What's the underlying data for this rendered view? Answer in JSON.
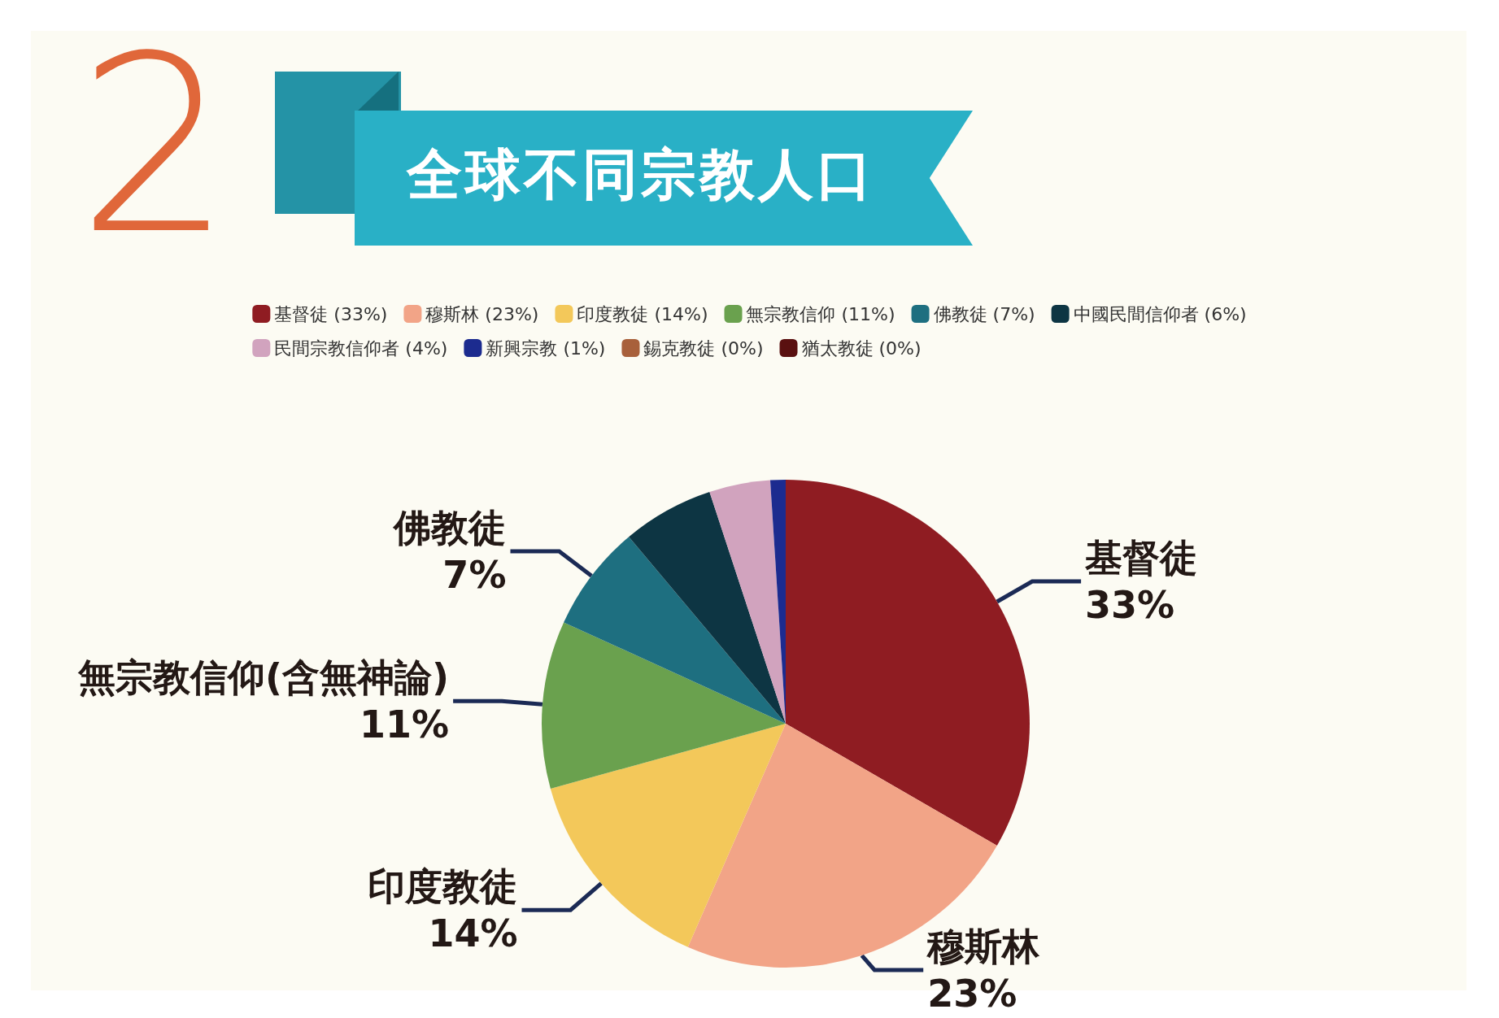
{
  "chart_data": {
    "type": "pie",
    "title": "全球不同宗教人口",
    "annotations": [
      "2"
    ],
    "categories": [
      "基督徒 (33%)",
      "穆斯林 (23%)",
      "印度教徒 (14%)",
      "無宗教信仰 (11%)",
      "佛教徒 (7%)",
      "中國民間信仰者 (6%)",
      "民間宗教信仰者 (4%)",
      "新興宗教 (1%)",
      "錫克教徒 (0%)",
      "猶太教徒 (0%)"
    ],
    "values": [
      33,
      23,
      14,
      11,
      7,
      6,
      4,
      1,
      0,
      0
    ],
    "colors": [
      "#8f1c22",
      "#f2a487",
      "#f3c85a",
      "#6aa14e",
      "#1e6f80",
      "#0d3543",
      "#d1a3be",
      "#1c2b8f",
      "#a8603b",
      "#5a1010"
    ],
    "value_labels": [
      "基督徒\n33%",
      "穆斯林\n23%",
      "印度教徒\n14%",
      "無宗教信仰(含無神論)\n11%",
      "佛教徒\n7%",
      null,
      null,
      null,
      null,
      null
    ],
    "legend": "top"
  }
}
